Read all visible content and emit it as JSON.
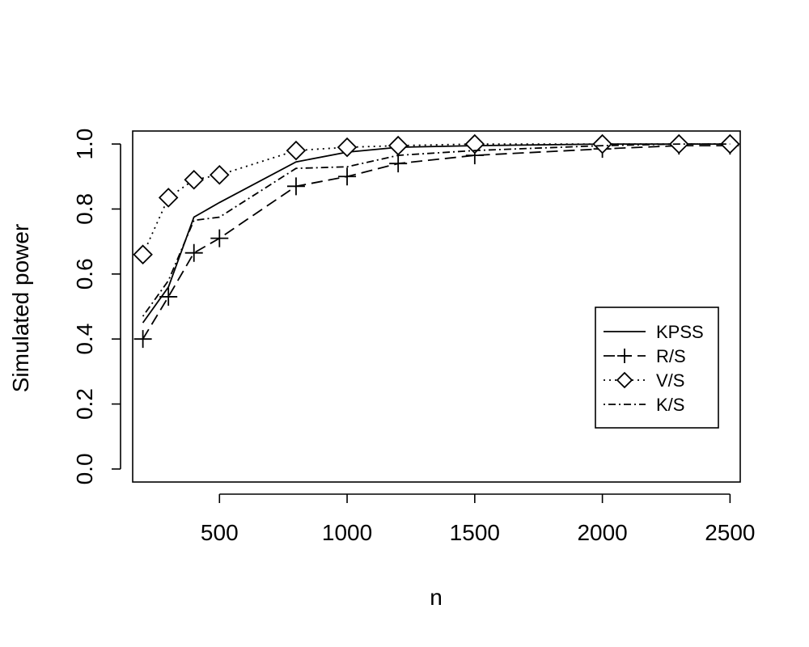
{
  "chart_data": {
    "type": "line",
    "title": "",
    "xlabel": "n",
    "ylabel": "Simulated power",
    "x": [
      200,
      300,
      400,
      500,
      800,
      1000,
      1200,
      1500,
      2000,
      2300,
      2500
    ],
    "xlim": [
      160,
      2540
    ],
    "ylim": [
      -0.04,
      1.04
    ],
    "xticks": [
      500,
      1000,
      1500,
      2000,
      2500
    ],
    "xtick_labels": [
      "500",
      "1000",
      "1500",
      "2000",
      "2500"
    ],
    "yticks": [
      0.0,
      0.2,
      0.4,
      0.6,
      0.8,
      1.0
    ],
    "ytick_labels": [
      "0.0",
      "0.2",
      "0.4",
      "0.6",
      "0.8",
      "1.0"
    ],
    "grid": false,
    "legend_position": "right",
    "series": [
      {
        "name": "KPSS",
        "values": [
          0.45,
          0.56,
          0.775,
          0.82,
          0.945,
          0.975,
          0.99,
          0.995,
          1.0,
          1.0,
          1.0
        ],
        "dash": "",
        "marker": "none"
      },
      {
        "name": "R/S",
        "values": [
          0.4,
          0.53,
          0.665,
          0.71,
          0.87,
          0.9,
          0.94,
          0.965,
          0.985,
          0.995,
          0.995
        ],
        "dash": "14 7",
        "marker": "plus"
      },
      {
        "name": "V/S",
        "values": [
          0.66,
          0.835,
          0.89,
          0.905,
          0.98,
          0.99,
          0.995,
          1.0,
          1.0,
          1.0,
          1.0
        ],
        "dash": "2 5",
        "marker": "diamond"
      },
      {
        "name": "K/S",
        "values": [
          0.47,
          0.58,
          0.765,
          0.775,
          0.925,
          0.93,
          0.965,
          0.98,
          0.995,
          1.0,
          1.0
        ],
        "dash": "2 4 9 4",
        "marker": "none"
      }
    ]
  }
}
